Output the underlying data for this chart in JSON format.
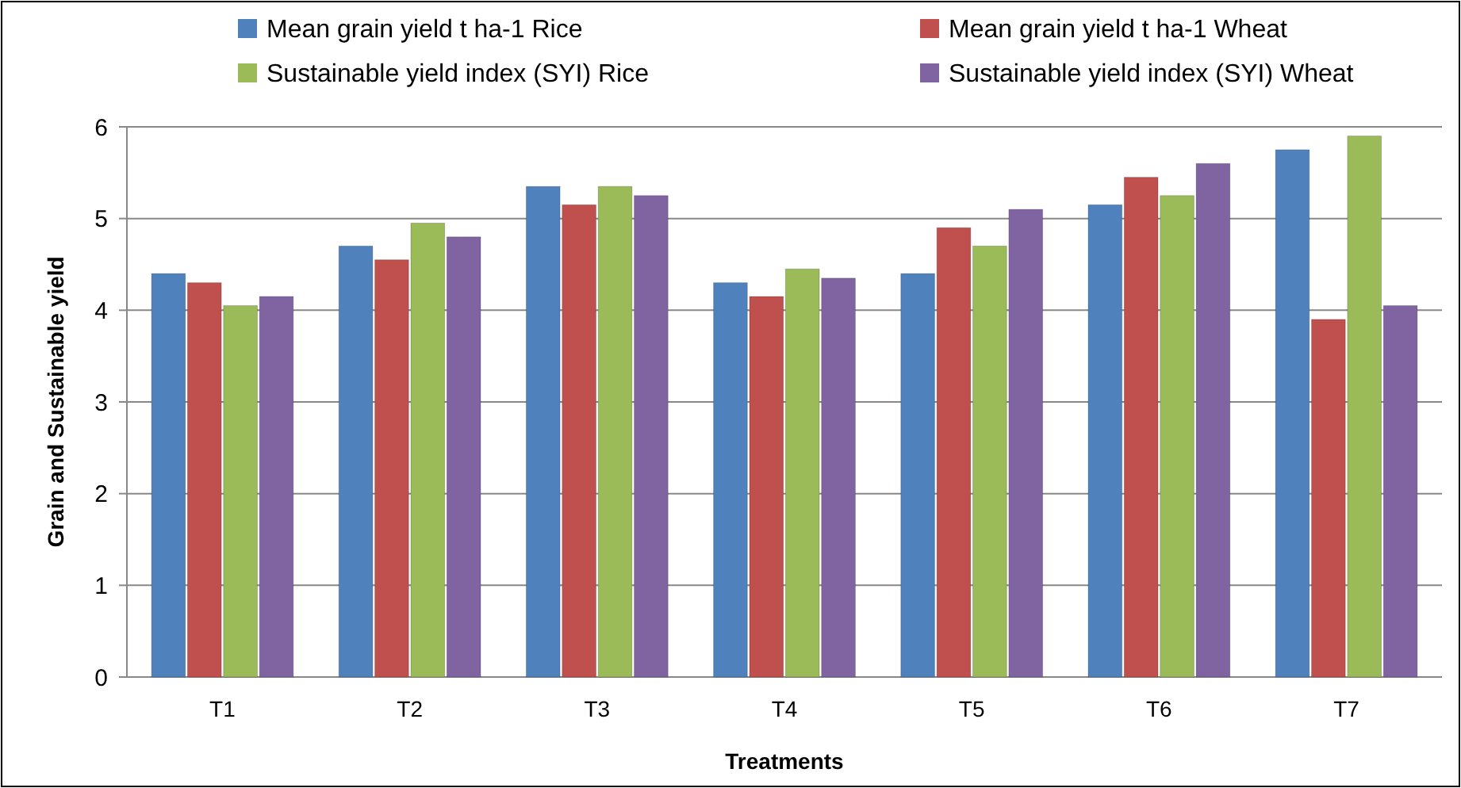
{
  "chart_data": {
    "type": "bar",
    "xlabel": "Treatments",
    "ylabel": "Grain and Sustainable yield",
    "categories": [
      "T1",
      "T2",
      "T3",
      "T4",
      "T5",
      "T6",
      "T7"
    ],
    "series": [
      {
        "name": "Mean grain yield t ha-1 Rice",
        "color": "#4f81bd",
        "values": [
          4.4,
          4.7,
          5.35,
          4.3,
          4.4,
          5.15,
          5.75
        ]
      },
      {
        "name": "Mean grain yield t ha-1 Wheat",
        "color": "#c0504d",
        "values": [
          4.3,
          4.55,
          5.15,
          4.15,
          4.9,
          5.45,
          3.9
        ]
      },
      {
        "name": "Sustainable yield index (SYI) Rice",
        "color": "#9bbb59",
        "values": [
          4.05,
          4.95,
          5.35,
          4.45,
          4.7,
          5.25,
          5.9
        ]
      },
      {
        "name": "Sustainable yield index (SYI) Wheat",
        "color": "#8064a2",
        "values": [
          4.15,
          4.8,
          5.25,
          4.35,
          5.1,
          5.6,
          4.05
        ]
      }
    ],
    "ylim": [
      0,
      6
    ],
    "yticks": [
      0,
      1,
      2,
      3,
      4,
      5,
      6
    ],
    "grid": "y",
    "legend": "top"
  }
}
